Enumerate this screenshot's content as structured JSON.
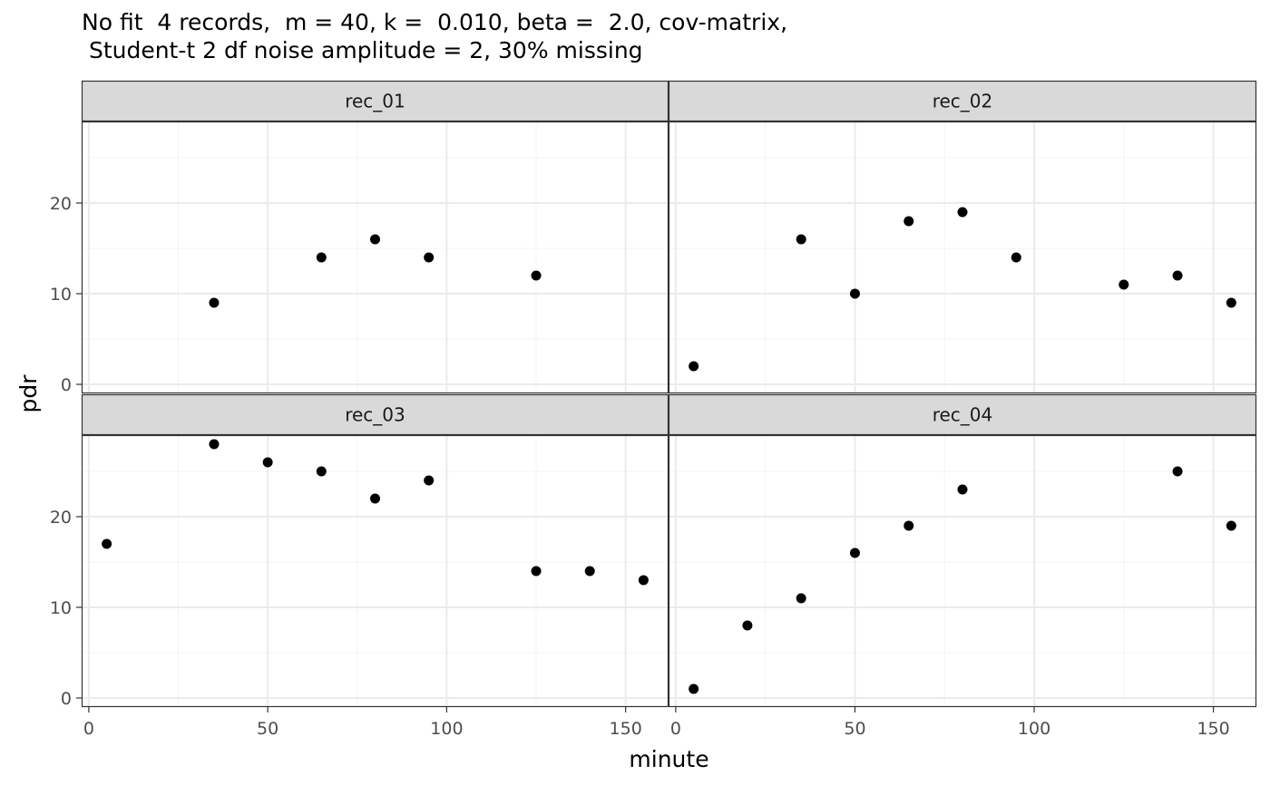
{
  "title_line1": "No fit  4 records,  m = 40, k =  0.010, beta =  2.0, cov-matrix,",
  "title_line2": " Student-t 2 df noise amplitude = 2, 30% missing",
  "chart_data": {
    "type": "scatter",
    "xlabel": "minute",
    "ylabel": "pdr",
    "xlim": [
      -2,
      162
    ],
    "ylim": [
      -1,
      29
    ],
    "x_ticks": [
      0,
      50,
      100,
      150
    ],
    "y_ticks": [
      0,
      10,
      20
    ],
    "grid": true,
    "colors": {
      "points": "#000000",
      "strip_fill": "#d9d9d9",
      "panel_border": "#333333",
      "grid_major": "#ebebeb",
      "grid_minor": "#f4f4f4"
    },
    "panels": [
      {
        "name": "rec_01",
        "x": [
          35,
          65,
          80,
          95,
          125
        ],
        "y": [
          9,
          14,
          16,
          14,
          12
        ]
      },
      {
        "name": "rec_02",
        "x": [
          5,
          35,
          50,
          65,
          80,
          95,
          125,
          140,
          155
        ],
        "y": [
          2,
          16,
          10,
          18,
          19,
          14,
          11,
          12,
          9
        ]
      },
      {
        "name": "rec_03",
        "x": [
          5,
          35,
          50,
          65,
          80,
          95,
          125,
          140,
          155
        ],
        "y": [
          17,
          28,
          26,
          25,
          22,
          24,
          14,
          14,
          13
        ]
      },
      {
        "name": "rec_04",
        "x": [
          5,
          20,
          35,
          50,
          65,
          80,
          140,
          155
        ],
        "y": [
          1,
          8,
          11,
          16,
          19,
          23,
          25,
          19
        ]
      }
    ]
  }
}
